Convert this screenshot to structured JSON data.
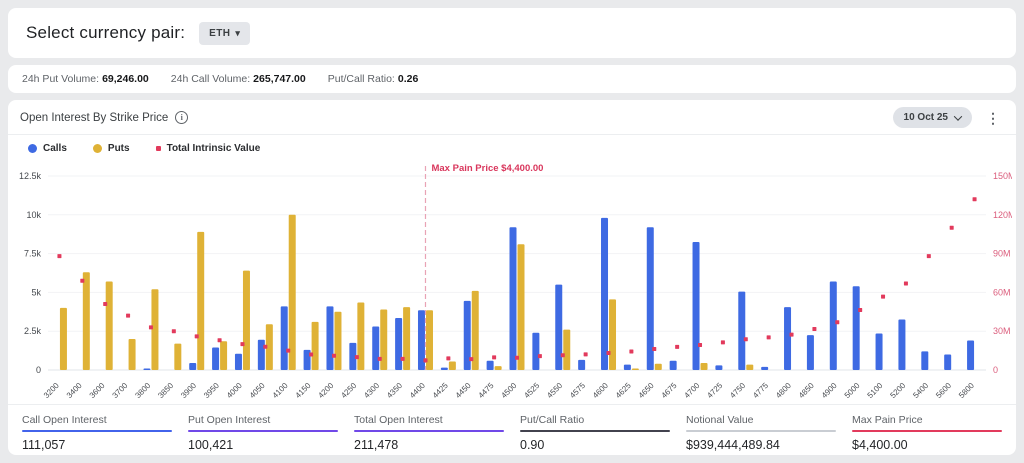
{
  "header": {
    "title": "Select currency pair:",
    "pair_button": {
      "label": "ETH",
      "caret": "▾"
    }
  },
  "volume_bar": {
    "items": [
      {
        "label": "24h Put Volume:",
        "value": "69,246.00"
      },
      {
        "label": "24h Call Volume:",
        "value": "265,747.00"
      },
      {
        "label": "Put/Call Ratio:",
        "value": "0.26"
      }
    ]
  },
  "chart_card": {
    "title": "Open Interest By Strike Price",
    "info_icon": "i",
    "date_button": {
      "label": "10 Oct 25"
    },
    "kebab": "⋮",
    "legend": [
      {
        "label": "Calls",
        "color": "#3E6AE3",
        "shape": "circle"
      },
      {
        "label": "Puts",
        "color": "#DFB236",
        "shape": "circle"
      },
      {
        "label": "Total Intrinsic Value",
        "color": "#E23A5C",
        "shape": "square"
      }
    ]
  },
  "chart_data": {
    "type": "bar",
    "title": "Open Interest By Strike Price",
    "xlabel": "Strike Price",
    "ylabel_left": "Open Interest",
    "ylabel_right": "Total Intrinsic Value",
    "grid": true,
    "legend_position": "top-left",
    "categories": [
      "3200",
      "3400",
      "3600",
      "3700",
      "3800",
      "3850",
      "3900",
      "3950",
      "4000",
      "4050",
      "4100",
      "4150",
      "4200",
      "4250",
      "4300",
      "4350",
      "4400",
      "4425",
      "4450",
      "4475",
      "4500",
      "4525",
      "4550",
      "4575",
      "4600",
      "4625",
      "4650",
      "4675",
      "4700",
      "4725",
      "4750",
      "4775",
      "4800",
      "4850",
      "4900",
      "5000",
      "5100",
      "5200",
      "5400",
      "5600",
      "5800"
    ],
    "series": [
      {
        "name": "Calls",
        "type": "bar",
        "axis": "left",
        "color": "#3E6AE3",
        "values": [
          0,
          0,
          0,
          0,
          100,
          0,
          450,
          1450,
          1050,
          1950,
          4100,
          1300,
          4100,
          1750,
          2800,
          3350,
          3850,
          150,
          4450,
          600,
          9200,
          2400,
          5500,
          650,
          9800,
          350,
          9200,
          600,
          8250,
          300,
          5050,
          200,
          4050,
          2250,
          5700,
          5400,
          2350,
          3250,
          1200,
          1000,
          1900
        ]
      },
      {
        "name": "Puts",
        "type": "bar",
        "axis": "left",
        "color": "#DFB236",
        "values": [
          4000,
          6300,
          5700,
          2000,
          5200,
          1700,
          8900,
          1850,
          6400,
          2950,
          10000,
          3100,
          3750,
          4350,
          3900,
          4050,
          3850,
          550,
          5100,
          250,
          8100,
          0,
          2600,
          0,
          4550,
          100,
          400,
          0,
          450,
          0,
          350,
          0,
          0,
          0,
          0,
          0,
          0,
          0,
          0,
          0,
          0
        ]
      },
      {
        "name": "Total Intrinsic Value",
        "type": "scatter",
        "axis": "right",
        "color": "#E23A5C",
        "values": [
          88,
          69,
          51,
          42,
          33,
          30,
          26,
          23,
          20,
          18,
          15,
          12,
          11,
          10,
          8.6,
          8.6,
          7.4,
          9,
          8.4,
          9.8,
          9.5,
          10.7,
          11.4,
          12.1,
          13.1,
          14.3,
          16.2,
          17.9,
          19.3,
          21.4,
          23.8,
          25.2,
          27.4,
          31.7,
          36.9,
          46.4,
          56.7,
          66.9,
          88,
          110,
          132
        ]
      }
    ],
    "left_axis": {
      "max": 12500,
      "ticks": [
        {
          "v": 0,
          "label": "0"
        },
        {
          "v": 2500,
          "label": "2.5k"
        },
        {
          "v": 5000,
          "label": "5k"
        },
        {
          "v": 7500,
          "label": "7.5k"
        },
        {
          "v": 10000,
          "label": "10k"
        },
        {
          "v": 12500,
          "label": "12.5k"
        }
      ],
      "color": "#45494e"
    },
    "right_axis": {
      "max": 150,
      "ticks": [
        {
          "v": 0,
          "label": "0"
        },
        {
          "v": 30,
          "label": "30M"
        },
        {
          "v": 60,
          "label": "60M"
        },
        {
          "v": 90,
          "label": "90M"
        },
        {
          "v": 120,
          "label": "120M"
        },
        {
          "v": 150,
          "label": "150M"
        }
      ],
      "color": "#DB5E7D"
    },
    "annotation": {
      "text": "Max Pain Price $4,400.00",
      "category": "4400",
      "color": "#D9365C",
      "line_color": "#E9A3B5"
    }
  },
  "stats": {
    "items": [
      {
        "label": "Call Open Interest",
        "value": "111,057",
        "underline": "#4263EB"
      },
      {
        "label": "Put Open Interest",
        "value": "100,421",
        "underline": "#7048E8"
      },
      {
        "label": "Total Open Interest",
        "value": "211,478",
        "underline": "#7048E8"
      },
      {
        "label": "Put/Call Ratio",
        "value": "0.90",
        "underline": "#42424E"
      },
      {
        "label": "Notional Value",
        "value": "$939,444,489.84",
        "underline": "#C9CDD3"
      },
      {
        "label": "Max Pain Price",
        "value": "$4,400.00",
        "underline": "#E23A5C"
      }
    ]
  }
}
